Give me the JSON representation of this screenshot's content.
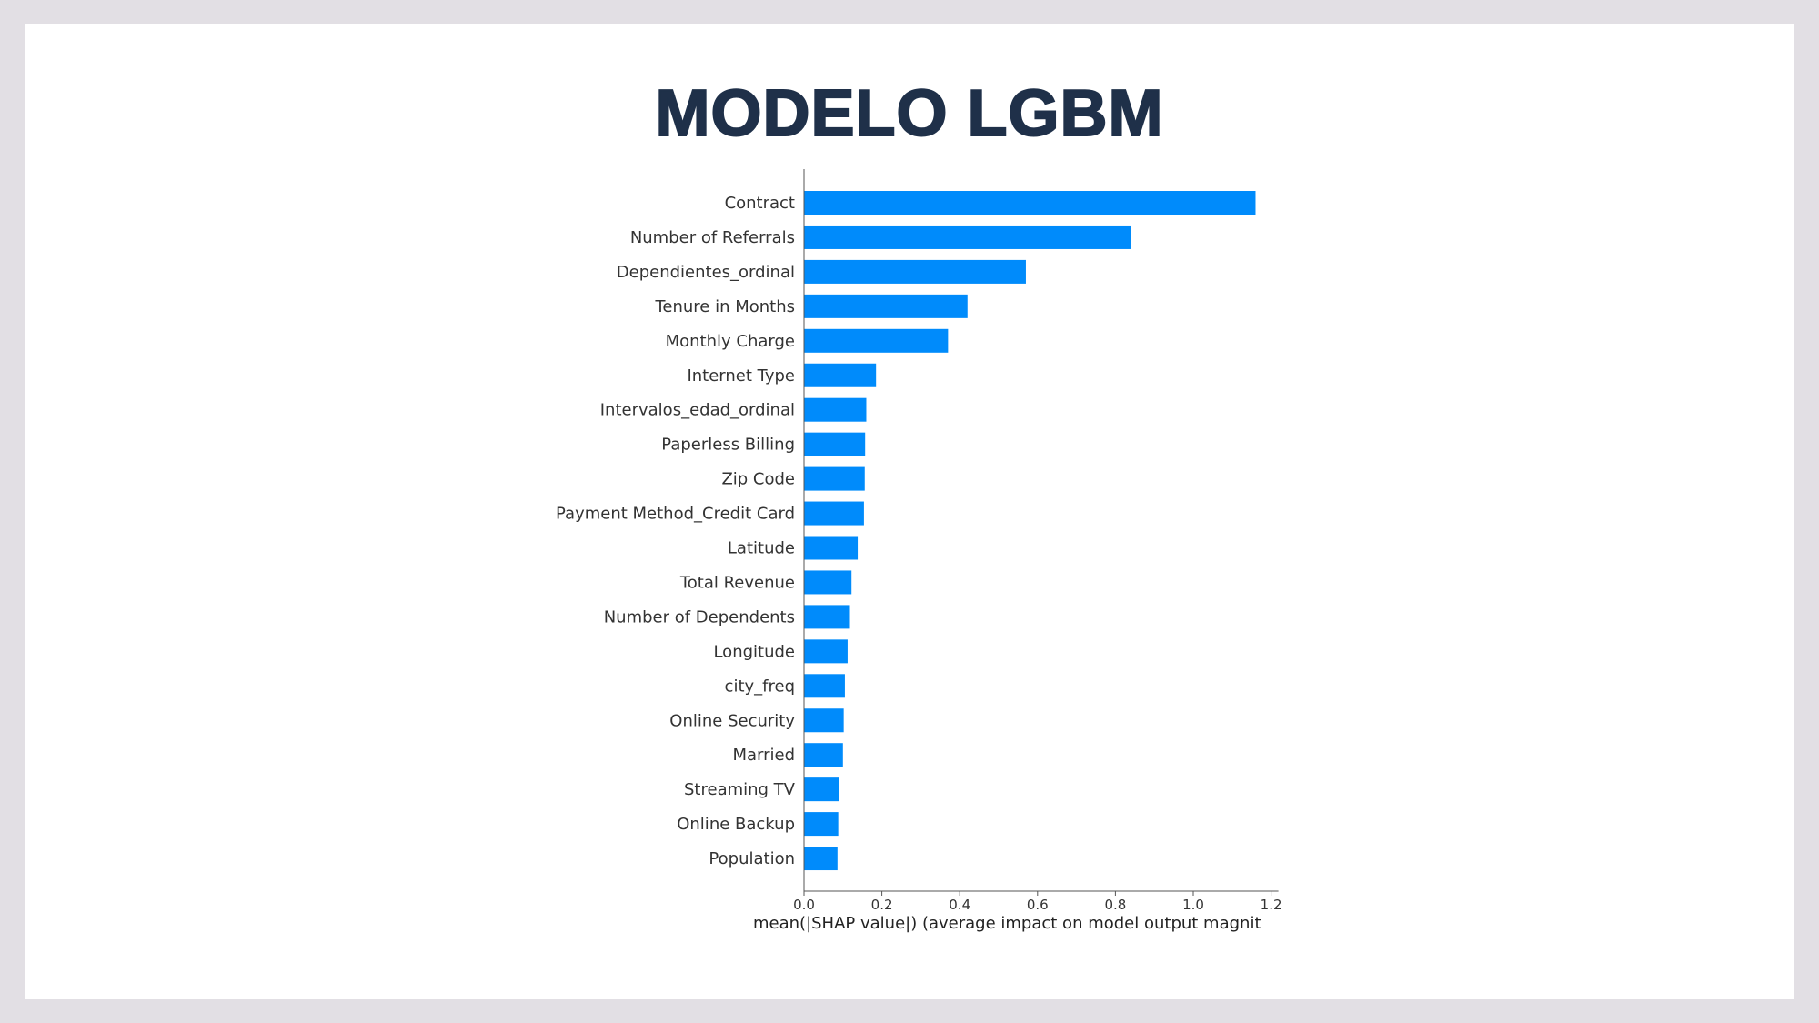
{
  "slide": {
    "title": "MODELO LGBM"
  },
  "chart_data": {
    "type": "bar",
    "orientation": "horizontal",
    "categories": [
      "Contract",
      "Number of Referrals",
      "Dependientes_ordinal",
      "Tenure in Months",
      "Monthly Charge",
      "Internet Type",
      "Intervalos_edad_ordinal",
      "Paperless Billing",
      "Zip Code",
      "Payment Method_Credit Card",
      "Latitude",
      "Total Revenue",
      "Number of Dependents",
      "Longitude",
      "city_freq",
      "Online Security",
      "Married",
      "Streaming TV",
      "Online Backup",
      "Population"
    ],
    "values": [
      1.16,
      0.84,
      0.57,
      0.42,
      0.37,
      0.185,
      0.16,
      0.157,
      0.156,
      0.154,
      0.138,
      0.122,
      0.118,
      0.112,
      0.105,
      0.102,
      0.1,
      0.09,
      0.088,
      0.086
    ],
    "xlabel": "mean(|SHAP value|) (average impact on model output magnit",
    "xlim": [
      0,
      1.2
    ],
    "xticks": [
      "0.0",
      "0.2",
      "0.4",
      "0.6",
      "0.8",
      "1.0",
      "1.2"
    ],
    "bar_color": "#008bfb",
    "grid": false
  }
}
